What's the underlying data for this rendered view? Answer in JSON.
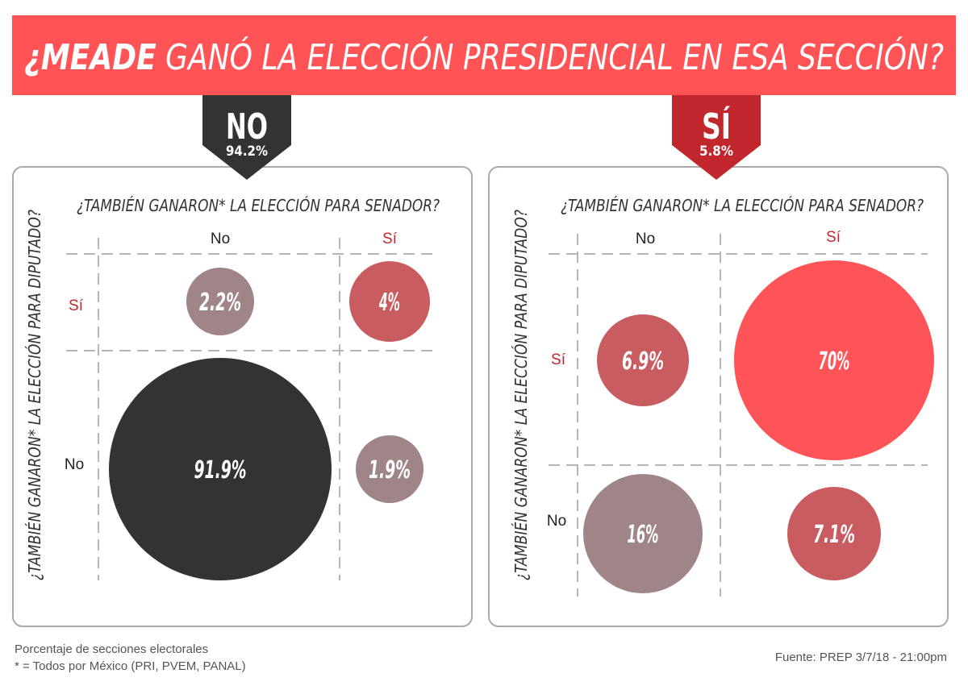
{
  "title": {
    "highlight": "¿MEADE",
    "rest": "GANÓ LA ELECCIÓN PRESIDENCIAL EN ESA SECCIÓN?"
  },
  "colors": {
    "title_bg": "#ff5356",
    "no_banner": "#333333",
    "si_banner": "#c1272d",
    "dark": "#333333",
    "mauve": "#a08588",
    "medium": "#c95c60",
    "bright": "#ff5457",
    "si_label": "#c1272d"
  },
  "chart_data": [
    {
      "type": "bubble",
      "banner": {
        "label": "NO",
        "value": "94.2%"
      },
      "x_title": "¿TAMBIÉN GANARON* LA ELECCIÓN PARA SENADOR?",
      "y_title": "¿TAMBIÉN GANARON* LA ELECCIÓN PARA DIPUTADO?",
      "columns": [
        "No",
        "Sí"
      ],
      "rows": [
        "Sí",
        "No"
      ],
      "cells": [
        {
          "row": "Sí",
          "col": "No",
          "value": 2.2,
          "label": "2.2%",
          "color": "mauve"
        },
        {
          "row": "Sí",
          "col": "Sí",
          "value": 4,
          "label": "4%",
          "color": "medium"
        },
        {
          "row": "No",
          "col": "No",
          "value": 91.9,
          "label": "91.9%",
          "color": "dark"
        },
        {
          "row": "No",
          "col": "Sí",
          "value": 1.9,
          "label": "1.9%",
          "color": "mauve"
        }
      ]
    },
    {
      "type": "bubble",
      "banner": {
        "label": "SÍ",
        "value": "5.8%"
      },
      "x_title": "¿TAMBIÉN GANARON* LA ELECCIÓN PARA SENADOR?",
      "y_title": "¿TAMBIÉN GANARON* LA ELECCIÓN PARA DIPUTADO?",
      "columns": [
        "No",
        "Sí"
      ],
      "rows": [
        "Sí",
        "No"
      ],
      "cells": [
        {
          "row": "Sí",
          "col": "No",
          "value": 6.9,
          "label": "6.9%",
          "color": "medium"
        },
        {
          "row": "Sí",
          "col": "Sí",
          "value": 70,
          "label": "70%",
          "color": "bright"
        },
        {
          "row": "No",
          "col": "No",
          "value": 16,
          "label": "16%",
          "color": "mauve"
        },
        {
          "row": "No",
          "col": "Sí",
          "value": 7.1,
          "label": "7.1%",
          "color": "medium"
        }
      ]
    }
  ],
  "footer": {
    "note1": "Porcentaje de secciones electorales",
    "note2": "* = Todos por México (PRI, PVEM, PANAL)",
    "source": "Fuente: PREP 3/7/18 - 21:00pm"
  }
}
